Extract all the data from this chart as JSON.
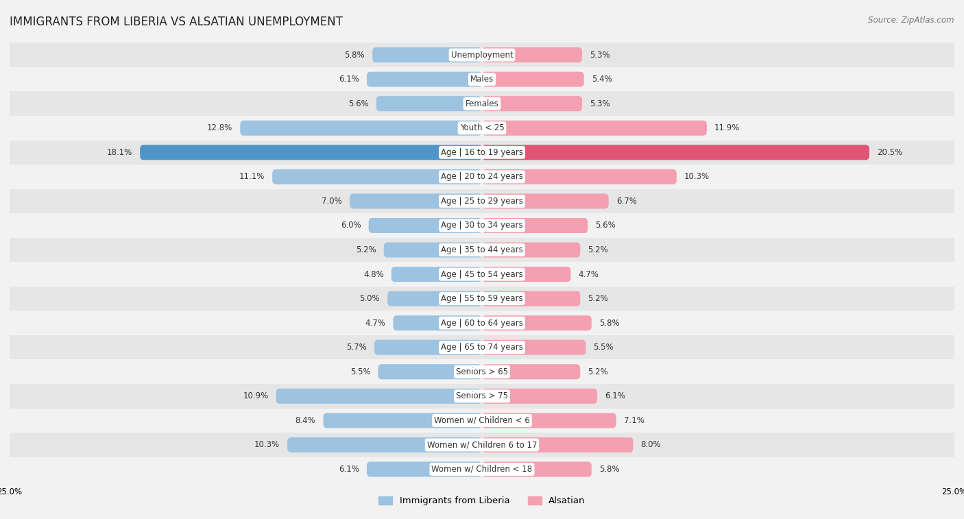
{
  "title": "IMMIGRANTS FROM LIBERIA VS ALSATIAN UNEMPLOYMENT",
  "source": "Source: ZipAtlas.com",
  "categories": [
    "Unemployment",
    "Males",
    "Females",
    "Youth < 25",
    "Age | 16 to 19 years",
    "Age | 20 to 24 years",
    "Age | 25 to 29 years",
    "Age | 30 to 34 years",
    "Age | 35 to 44 years",
    "Age | 45 to 54 years",
    "Age | 55 to 59 years",
    "Age | 60 to 64 years",
    "Age | 65 to 74 years",
    "Seniors > 65",
    "Seniors > 75",
    "Women w/ Children < 6",
    "Women w/ Children 6 to 17",
    "Women w/ Children < 18"
  ],
  "liberia_values": [
    5.8,
    6.1,
    5.6,
    12.8,
    18.1,
    11.1,
    7.0,
    6.0,
    5.2,
    4.8,
    5.0,
    4.7,
    5.7,
    5.5,
    10.9,
    8.4,
    10.3,
    6.1
  ],
  "alsatian_values": [
    5.3,
    5.4,
    5.3,
    11.9,
    20.5,
    10.3,
    6.7,
    5.6,
    5.2,
    4.7,
    5.2,
    5.8,
    5.5,
    5.2,
    6.1,
    7.1,
    8.0,
    5.8
  ],
  "liberia_color": "#9dc3e0",
  "alsatian_color": "#f4a0b0",
  "highlight_liberia_color": "#4e96c8",
  "highlight_alsatian_color": "#e05575",
  "highlight_index": 4,
  "xlim": 25.0,
  "bar_height": 0.62,
  "background_color": "#f2f2f2",
  "row_colors": [
    "#e6e6e6",
    "#f2f2f2"
  ],
  "title_fontsize": 12,
  "label_fontsize": 8.5,
  "value_fontsize": 8.5,
  "legend_fontsize": 9.5,
  "source_fontsize": 8.5
}
